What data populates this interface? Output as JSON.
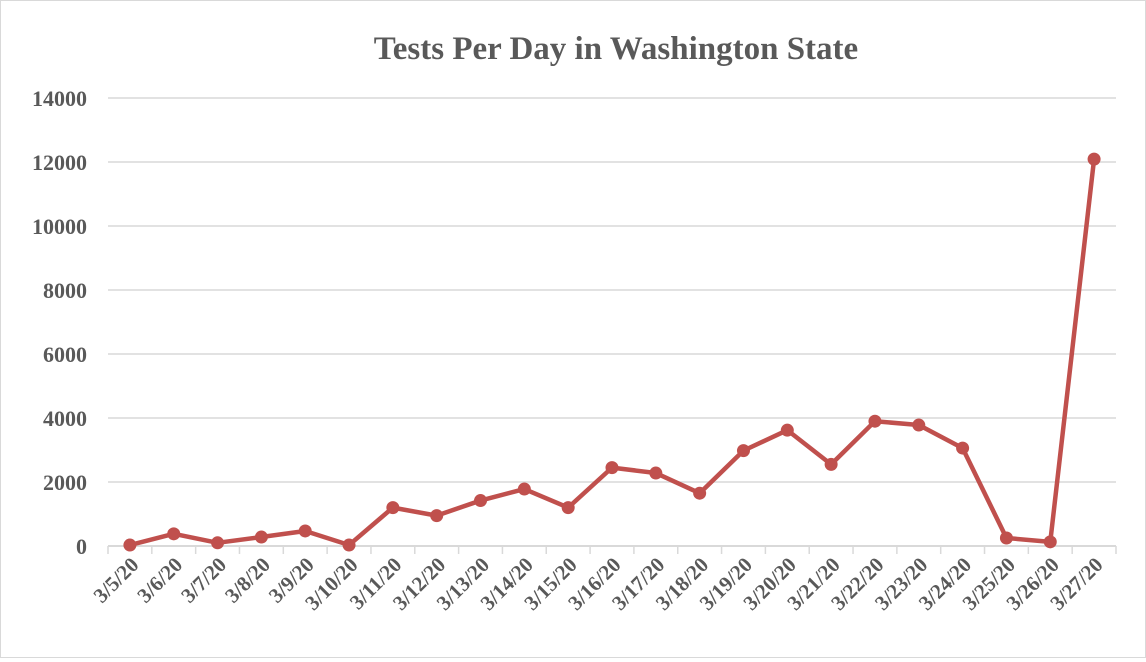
{
  "chart_data": {
    "type": "line",
    "title": "Tests Per Day in Washington State",
    "xlabel": "",
    "ylabel": "",
    "ylim": [
      0,
      14000
    ],
    "yticks": [
      "0",
      "2000",
      "4000",
      "6000",
      "8000",
      "10000",
      "12000",
      "14000"
    ],
    "grid": true,
    "legend": "none",
    "categories": [
      "3/5/20",
      "3/6/20",
      "3/7/20",
      "3/8/20",
      "3/9/20",
      "3/10/20",
      "3/11/20",
      "3/12/20",
      "3/13/20",
      "3/14/20",
      "3/15/20",
      "3/16/20",
      "3/17/20",
      "3/18/20",
      "3/19/20",
      "3/20/20",
      "3/21/20",
      "3/22/20",
      "3/23/20",
      "3/24/20",
      "3/25/20",
      "3/26/20",
      "3/27/20"
    ],
    "series": [
      {
        "name": "Tests",
        "color": "#c0504d",
        "values": [
          30,
          380,
          100,
          280,
          470,
          30,
          1200,
          950,
          1420,
          1780,
          1200,
          2450,
          2280,
          1650,
          2980,
          3620,
          2550,
          3900,
          3780,
          3060,
          250,
          130,
          12090
        ]
      }
    ]
  }
}
